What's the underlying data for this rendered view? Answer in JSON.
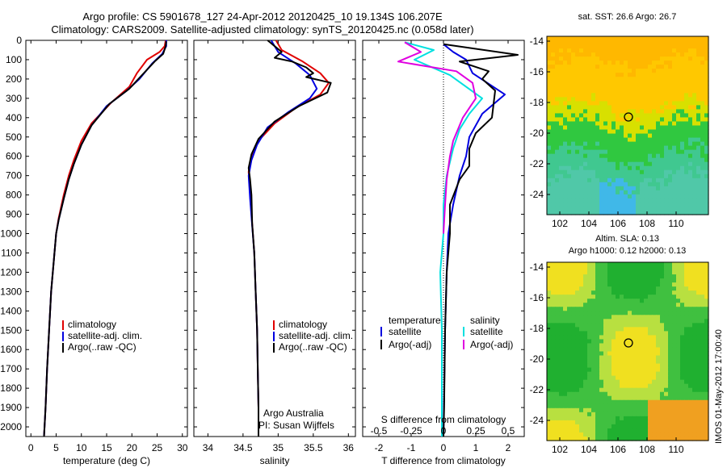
{
  "figure": {
    "title_line1": "Argo profile: CS 5901678_127 24-Apr-2012 20120425_10 19.134S 106.207E",
    "title_line2": "Climatology: CARS2009. Satellite-adjusted climatology: synTS_20120425.nc (0.058d later)",
    "side_stamp": "IMOS 01-May-2012 17:00:40",
    "attribution_line1": "Argo Australia",
    "attribution_line2": "PI: Susan Wijffels"
  },
  "colors": {
    "climatology": "#e00000",
    "satellite": "#0000e0",
    "argo": "#000000",
    "satellite_s": "#00e0e0",
    "argo_s": "#e000e0"
  },
  "map_panels": {
    "sst": {
      "title": "sat. SST: 26.6 Argo: 26.7",
      "x_ticks": [
        "102",
        "104",
        "106",
        "108",
        "110"
      ],
      "y_ticks": [
        "-14",
        "-16",
        "-18",
        "-20",
        "-22",
        "-24"
      ]
    },
    "sla": {
      "title_line1": "Altim. SLA: 0.13",
      "title_line2": "Argo h1000: 0.12 h2000: 0.13",
      "x_ticks": [
        "102",
        "104",
        "106",
        "108",
        "110"
      ],
      "y_ticks": [
        "-14",
        "-16",
        "-18",
        "-20",
        "-22",
        "-24"
      ]
    }
  },
  "chart_data": [
    {
      "type": "line",
      "xlabel": "temperature (deg C)",
      "ylabel": "",
      "xlim": [
        -1,
        31
      ],
      "ylim": [
        2050,
        0
      ],
      "x_ticks": [
        "0",
        "5",
        "10",
        "15",
        "20",
        "25",
        "30"
      ],
      "y_ticks": [
        "0",
        "100",
        "200",
        "300",
        "400",
        "500",
        "600",
        "700",
        "800",
        "900",
        "1000",
        "1100",
        "1200",
        "1300",
        "1400",
        "1500",
        "1600",
        "1700",
        "1800",
        "1900",
        "2000"
      ],
      "legend": [
        "climatology",
        "satellite-adj. clim.",
        "Argo(..raw -QC)"
      ],
      "series": [
        {
          "name": "climatology",
          "color": "#e00000",
          "points": [
            [
              26.7,
              0
            ],
            [
              26.5,
              30
            ],
            [
              25.5,
              60
            ],
            [
              23,
              100
            ],
            [
              21,
              170
            ],
            [
              19.5,
              240
            ],
            [
              16,
              320
            ],
            [
              12,
              430
            ],
            [
              10,
              520
            ],
            [
              8.5,
              620
            ],
            [
              7.5,
              700
            ],
            [
              6.5,
              800
            ],
            [
              5.5,
              920
            ],
            [
              5,
              1000
            ],
            [
              4.5,
              1150
            ],
            [
              4,
              1300
            ],
            [
              3.6,
              1500
            ],
            [
              3.2,
              1700
            ],
            [
              2.9,
              1900
            ],
            [
              2.6,
              2050
            ]
          ]
        },
        {
          "name": "satellite-adj. clim.",
          "color": "#0000e0",
          "points": [
            [
              26.8,
              0
            ],
            [
              26.8,
              30
            ],
            [
              26,
              70
            ],
            [
              24,
              120
            ],
            [
              21.5,
              200
            ],
            [
              19,
              260
            ],
            [
              15,
              340
            ],
            [
              12,
              440
            ],
            [
              10,
              540
            ],
            [
              8.5,
              640
            ],
            [
              7.5,
              720
            ],
            [
              6.5,
              820
            ],
            [
              5.5,
              930
            ],
            [
              5,
              1000
            ],
            [
              4.5,
              1150
            ],
            [
              4,
              1300
            ],
            [
              3.6,
              1500
            ],
            [
              3.2,
              1700
            ],
            [
              2.9,
              1900
            ],
            [
              2.6,
              2050
            ]
          ]
        },
        {
          "name": "Argo(..raw -QC)",
          "color": "#000000",
          "points": [
            [
              26.8,
              5
            ],
            [
              26.7,
              30
            ],
            [
              26.2,
              70
            ],
            [
              24.5,
              110
            ],
            [
              22,
              180
            ],
            [
              19.5,
              250
            ],
            [
              15.5,
              330
            ],
            [
              12,
              440
            ],
            [
              10,
              540
            ],
            [
              8.5,
              640
            ],
            [
              7.5,
              720
            ],
            [
              6.5,
              820
            ],
            [
              5.5,
              930
            ],
            [
              5,
              1000
            ],
            [
              4.5,
              1150
            ],
            [
              4,
              1300
            ],
            [
              3.6,
              1500
            ],
            [
              3.2,
              1700
            ],
            [
              2.9,
              1900
            ],
            [
              2.6,
              2050
            ]
          ]
        }
      ]
    },
    {
      "type": "line",
      "xlabel": "salinity",
      "xlim": [
        33.8,
        36.1
      ],
      "ylim": [
        2050,
        0
      ],
      "x_ticks": [
        "34",
        "34.5",
        "35",
        "35.5",
        "36"
      ],
      "legend": [
        "climatology",
        "satellite-adj. clim.",
        "Argo(..raw -QC)"
      ],
      "series": [
        {
          "name": "climatology",
          "color": "#e00000",
          "points": [
            [
              34.97,
              0
            ],
            [
              35.05,
              50
            ],
            [
              35.35,
              110
            ],
            [
              35.6,
              170
            ],
            [
              35.72,
              220
            ],
            [
              35.6,
              280
            ],
            [
              35.25,
              350
            ],
            [
              34.95,
              430
            ],
            [
              34.72,
              520
            ],
            [
              34.62,
              600
            ],
            [
              34.58,
              680
            ],
            [
              34.6,
              800
            ],
            [
              34.63,
              950
            ],
            [
              34.66,
              1100
            ],
            [
              34.68,
              1300
            ],
            [
              34.7,
              1500
            ],
            [
              34.71,
              1700
            ],
            [
              34.72,
              1900
            ],
            [
              34.72,
              2050
            ]
          ]
        },
        {
          "name": "satellite-adj. clim.",
          "color": "#0000e0",
          "points": [
            [
              34.9,
              0
            ],
            [
              35.0,
              60
            ],
            [
              35.25,
              120
            ],
            [
              35.45,
              180
            ],
            [
              35.55,
              250
            ],
            [
              35.45,
              300
            ],
            [
              35.15,
              370
            ],
            [
              34.85,
              450
            ],
            [
              34.7,
              540
            ],
            [
              34.62,
              620
            ],
            [
              34.58,
              700
            ],
            [
              34.6,
              820
            ],
            [
              34.63,
              960
            ],
            [
              34.66,
              1100
            ],
            [
              34.68,
              1300
            ],
            [
              34.7,
              1500
            ],
            [
              34.71,
              1700
            ],
            [
              34.72,
              1900
            ],
            [
              34.72,
              2050
            ]
          ]
        },
        {
          "name": "Argo(..raw -QC)",
          "color": "#000000",
          "points": [
            [
              34.85,
              0
            ],
            [
              34.95,
              30
            ],
            [
              35.05,
              60
            ],
            [
              34.95,
              90
            ],
            [
              35.2,
              110
            ],
            [
              35.4,
              140
            ],
            [
              35.5,
              170
            ],
            [
              35.4,
              190
            ],
            [
              35.75,
              220
            ],
            [
              35.7,
              270
            ],
            [
              35.3,
              340
            ],
            [
              34.95,
              420
            ],
            [
              34.72,
              510
            ],
            [
              34.62,
              590
            ],
            [
              34.58,
              660
            ],
            [
              34.6,
              720
            ],
            [
              34.62,
              800
            ],
            [
              34.63,
              950
            ],
            [
              34.66,
              1100
            ],
            [
              34.68,
              1300
            ],
            [
              34.7,
              1500
            ],
            [
              34.71,
              1700
            ],
            [
              34.72,
              1900
            ],
            [
              34.72,
              2050
            ]
          ]
        }
      ]
    },
    {
      "type": "line",
      "xlabel": "T difference from climatology",
      "x2label": "S difference from climatology",
      "xlim": [
        -2.5,
        2.5
      ],
      "ylim": [
        2050,
        0
      ],
      "x_ticks": [
        "-2",
        "-1",
        "0",
        "1",
        "2"
      ],
      "x2_ticks": [
        "-0.5",
        "-0.25",
        "0",
        "0.25",
        "0.5"
      ],
      "legend_temperature_title": "temperature",
      "legend_salinity_title": "salinity",
      "legend": [
        "satellite",
        "Argo(-adj)",
        "satellite",
        "Argo(-adj)"
      ],
      "series": [
        {
          "name": "satellite",
          "color": "#0000e0",
          "points": [
            [
              0,
              20
            ],
            [
              0.3,
              60
            ],
            [
              0.7,
              100
            ],
            [
              0.9,
              170
            ],
            [
              1.9,
              280
            ],
            [
              1.2,
              380
            ],
            [
              0.8,
              500
            ],
            [
              0.7,
              600
            ],
            [
              0.5,
              700
            ],
            [
              0.3,
              850
            ],
            [
              0.15,
              1000
            ],
            [
              0.1,
              1200
            ],
            [
              0.05,
              1500
            ],
            [
              0,
              2050
            ]
          ]
        },
        {
          "name": "Argo(-adj)",
          "color": "#000000",
          "points": [
            [
              0,
              20
            ],
            [
              2.3,
              75
            ],
            [
              0.5,
              110
            ],
            [
              1.4,
              160
            ],
            [
              1.2,
              200
            ],
            [
              1.6,
              260
            ],
            [
              1.5,
              400
            ],
            [
              1.0,
              480
            ],
            [
              0.8,
              560
            ],
            [
              0.8,
              650
            ],
            [
              0.5,
              720
            ],
            [
              0.2,
              850
            ],
            [
              0.2,
              1000
            ],
            [
              0.1,
              1200
            ],
            [
              0.05,
              1500
            ],
            [
              0.02,
              1900
            ],
            [
              0,
              2050
            ]
          ]
        },
        {
          "name": "satellite",
          "color": "#00e0e0",
          "points": [
            [
              -1.2,
              10
            ],
            [
              -0.3,
              50
            ],
            [
              -0.9,
              100
            ],
            [
              0.2,
              180
            ],
            [
              1.2,
              300
            ],
            [
              0.8,
              380
            ],
            [
              0.5,
              460
            ],
            [
              0.3,
              560
            ],
            [
              0.1,
              700
            ],
            [
              0,
              850
            ],
            [
              0,
              1000
            ],
            [
              -0.1,
              1200
            ],
            [
              -0.05,
              1500
            ],
            [
              -0.05,
              2050
            ]
          ]
        },
        {
          "name": "Argo(-adj)",
          "color": "#e000e0",
          "points": [
            [
              -1.2,
              10
            ],
            [
              -0.7,
              60
            ],
            [
              -1.4,
              110
            ],
            [
              0.4,
              160
            ],
            [
              0.9,
              220
            ],
            [
              1.0,
              300
            ],
            [
              0.6,
              400
            ],
            [
              0.3,
              520
            ],
            [
              0.2,
              600
            ],
            [
              0.1,
              720
            ],
            [
              0.05,
              850
            ],
            [
              0,
              1000
            ]
          ]
        }
      ]
    }
  ]
}
